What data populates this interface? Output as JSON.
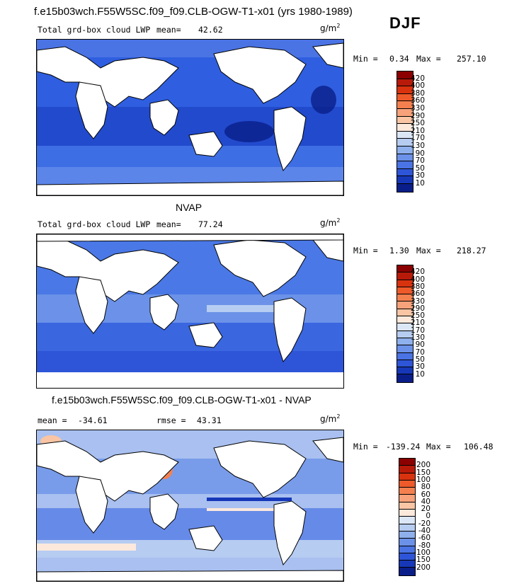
{
  "header": {
    "title": "f.e15b03wch.F55W5SC.f09_f09.CLB-OGW-T1-x01 (yrs 1980-1989)",
    "season": "DJF"
  },
  "units": "g/m",
  "units_sup": "2",
  "panels": [
    {
      "id": "model",
      "variable": "Total grd-box cloud LWP",
      "mean_label": "mean=",
      "mean_value": "42.62",
      "min_label": "Min =",
      "min_value": "0.34",
      "max_label": "Max =",
      "max_value": "257.10"
    },
    {
      "id": "obs",
      "heading": "NVAP",
      "variable": "Total grd-box cloud LWP",
      "mean_label": "mean=",
      "mean_value": "77.24",
      "min_label": "Min =",
      "min_value": "1.30",
      "max_label": "Max =",
      "max_value": "218.27"
    },
    {
      "id": "diff",
      "heading": "f.e15b03wch.F55W5SC.f09_f09.CLB-OGW-T1-x01 - NVAP",
      "mean_label": "mean =",
      "mean_value": "-34.61",
      "rmse_label": "rmse =",
      "rmse_value": "43.31",
      "min_label": "Min =",
      "min_value": "-139.24",
      "max_label": "Max =",
      "max_value": "106.48"
    }
  ],
  "colorbar_abs": {
    "levels": [
      "420",
      "400",
      "380",
      "360",
      "330",
      "290",
      "250",
      "210",
      "170",
      "130",
      "90",
      "70",
      "50",
      "30",
      "10"
    ],
    "colors": [
      "#8b0000",
      "#b81a0a",
      "#d9320f",
      "#ee5a2a",
      "#f5804f",
      "#f7a27a",
      "#f9c5a4",
      "#fce9dc",
      "#dbe6f7",
      "#b6ccf1",
      "#8eb0ec",
      "#6b92e8",
      "#4a73e4",
      "#2e55d8",
      "#1638b8",
      "#0a1e8a"
    ]
  },
  "colorbar_diff": {
    "levels": [
      "200",
      "150",
      "100",
      "80",
      "60",
      "40",
      "20",
      "0",
      "-20",
      "-40",
      "-60",
      "-80",
      "-100",
      "-150",
      "-200"
    ],
    "colors": [
      "#8b0000",
      "#b81a0a",
      "#d9320f",
      "#ee5a2a",
      "#f5804f",
      "#f7a27a",
      "#f9c5a4",
      "#fce9dc",
      "#dbe6f7",
      "#b6ccf1",
      "#8eb0ec",
      "#6b92e8",
      "#4a73e4",
      "#2e55d8",
      "#1638b8",
      "#0a1e8a"
    ]
  },
  "field_colors": {
    "ocean_model": "#2f5fe0",
    "ocean_obs": "#4a78e6",
    "ocean_diff": "#a9c0f0"
  }
}
